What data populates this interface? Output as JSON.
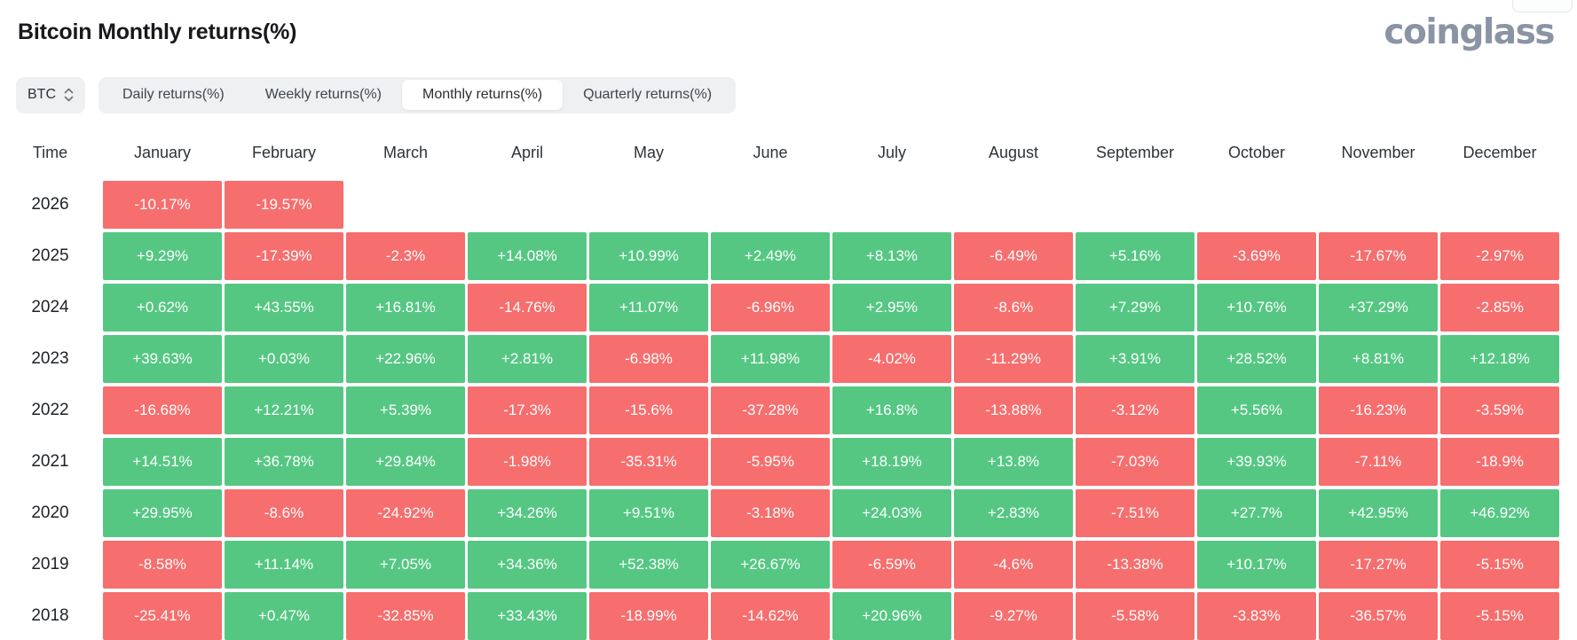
{
  "page": {
    "title": "Bitcoin Monthly returns(%)",
    "brand": "coinglass"
  },
  "controls": {
    "symbol_select": {
      "value": "BTC"
    },
    "tabs": [
      {
        "label": "Daily returns(%)",
        "active": false
      },
      {
        "label": "Weekly returns(%)",
        "active": false
      },
      {
        "label": "Monthly returns(%)",
        "active": true
      },
      {
        "label": "Quarterly returns(%)",
        "active": false
      }
    ]
  },
  "table": {
    "corner_label": "Time"
  },
  "colors": {
    "positive": "#55c783",
    "negative": "#f66e6e"
  },
  "chart_data": {
    "type": "heatmap",
    "title": "Bitcoin Monthly returns(%)",
    "unit": "%",
    "x_labels": [
      "January",
      "February",
      "March",
      "April",
      "May",
      "June",
      "July",
      "August",
      "September",
      "October",
      "November",
      "December"
    ],
    "y_labels": [
      "2026",
      "2025",
      "2024",
      "2023",
      "2022",
      "2021",
      "2020",
      "2019",
      "2018"
    ],
    "values": [
      [
        -10.17,
        -19.57,
        null,
        null,
        null,
        null,
        null,
        null,
        null,
        null,
        null,
        null
      ],
      [
        9.29,
        -17.39,
        -2.3,
        14.08,
        10.99,
        2.49,
        8.13,
        -6.49,
        5.16,
        -3.69,
        -17.67,
        -2.97
      ],
      [
        0.62,
        43.55,
        16.81,
        -14.76,
        11.07,
        -6.96,
        2.95,
        -8.6,
        7.29,
        10.76,
        37.29,
        -2.85
      ],
      [
        39.63,
        0.03,
        22.96,
        2.81,
        -6.98,
        11.98,
        -4.02,
        -11.29,
        3.91,
        28.52,
        8.81,
        12.18
      ],
      [
        -16.68,
        12.21,
        5.39,
        -17.3,
        -15.6,
        -37.28,
        16.8,
        -13.88,
        -3.12,
        5.56,
        -16.23,
        -3.59
      ],
      [
        14.51,
        36.78,
        29.84,
        -1.98,
        -35.31,
        -5.95,
        18.19,
        13.8,
        -7.03,
        39.93,
        -7.11,
        -18.9
      ],
      [
        29.95,
        -8.6,
        -24.92,
        34.26,
        9.51,
        -3.18,
        24.03,
        2.83,
        -7.51,
        27.7,
        42.95,
        46.92
      ],
      [
        -8.58,
        11.14,
        7.05,
        34.36,
        52.38,
        26.67,
        -6.59,
        -4.6,
        -13.38,
        10.17,
        -17.27,
        -5.15
      ],
      [
        -25.41,
        0.47,
        -32.85,
        33.43,
        -18.99,
        -14.62,
        20.96,
        -9.27,
        -5.58,
        -3.83,
        -36.57,
        -5.15
      ]
    ]
  }
}
